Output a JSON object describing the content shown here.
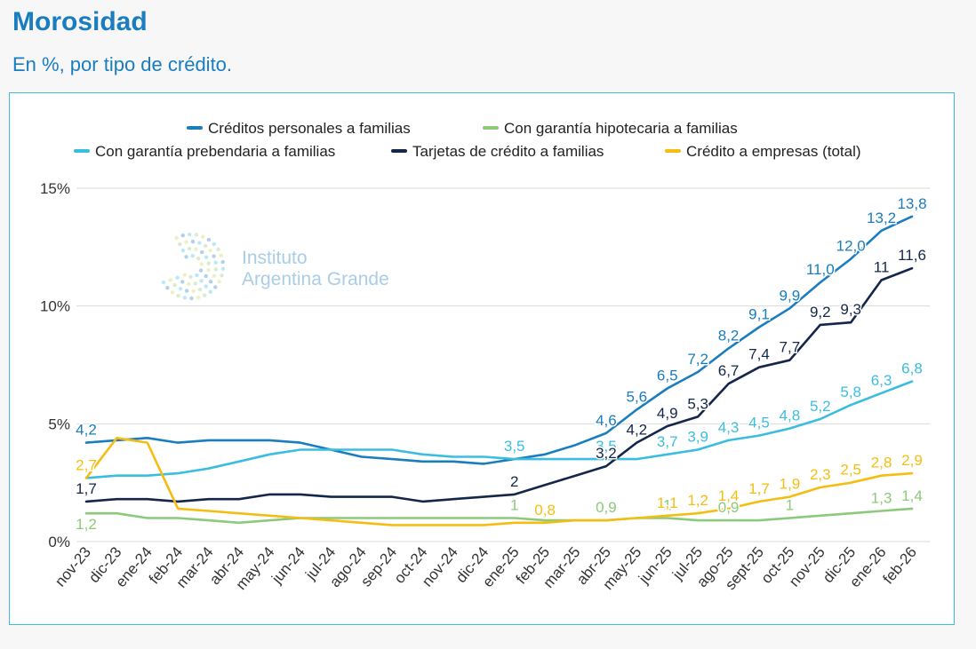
{
  "header": {
    "title": "Morosidad",
    "subtitle": "En %, por tipo de crédito."
  },
  "watermark": {
    "line1": "Instituto",
    "line2": "Argentina Grande"
  },
  "chart_data": {
    "type": "line",
    "categories": [
      "nov-23",
      "dic-23",
      "ene-24",
      "feb-24",
      "mar-24",
      "abr-24",
      "may-24",
      "jun-24",
      "jul-24",
      "ago-24",
      "sep-24",
      "oct-24",
      "nov-24",
      "dic-24",
      "ene-25",
      "feb-25",
      "mar-25",
      "abr-25",
      "may-25",
      "jun-25",
      "jul-25",
      "ago-25",
      "sept-25",
      "oct-25",
      "nov-25",
      "dic-25",
      "ene-26",
      "feb-26"
    ],
    "ylim": [
      0,
      15
    ],
    "yticks": [
      0,
      5,
      10,
      15
    ],
    "ytick_labels": [
      "0%",
      "5%",
      "10%",
      "15%"
    ],
    "grid": true,
    "legend_position": "top",
    "series": [
      {
        "name": "Créditos personales a familias",
        "color": "#1a7dbf",
        "values": [
          4.2,
          4.3,
          4.4,
          4.2,
          4.3,
          4.3,
          4.3,
          4.2,
          3.9,
          3.6,
          3.5,
          3.4,
          3.4,
          3.3,
          3.5,
          3.7,
          4.1,
          4.6,
          5.6,
          6.5,
          7.2,
          8.2,
          9.1,
          9.9,
          11.0,
          12.0,
          13.2,
          13.8
        ],
        "labels": [
          {
            "i": 0,
            "text": "4,2"
          },
          {
            "i": 14,
            "text": "3,5"
          },
          {
            "i": 17,
            "text": "4,6"
          },
          {
            "i": 18,
            "text": "5,6"
          },
          {
            "i": 19,
            "text": "6,5"
          },
          {
            "i": 20,
            "text": "7,2"
          },
          {
            "i": 21,
            "text": "8,2"
          },
          {
            "i": 22,
            "text": "9,1"
          },
          {
            "i": 23,
            "text": "9,9"
          },
          {
            "i": 24,
            "text": "11,0"
          },
          {
            "i": 25,
            "text": "12,0"
          },
          {
            "i": 26,
            "text": "13,2"
          },
          {
            "i": 27,
            "text": "13,8"
          }
        ]
      },
      {
        "name": "Con garantía hipotecaria a familias",
        "color": "#8cc97a",
        "values": [
          1.2,
          1.2,
          1.0,
          1.0,
          0.9,
          0.8,
          0.9,
          1.0,
          1.0,
          1.0,
          1.0,
          1.0,
          1.0,
          1.0,
          1.0,
          0.9,
          0.9,
          0.9,
          1.0,
          1.0,
          0.9,
          0.9,
          0.9,
          1.0,
          1.1,
          1.2,
          1.3,
          1.4
        ],
        "labels": [
          {
            "i": 0,
            "text": "1,2"
          },
          {
            "i": 14,
            "text": "1"
          },
          {
            "i": 17,
            "text": "0,9"
          },
          {
            "i": 19,
            "text": "1"
          },
          {
            "i": 21,
            "text": "0,9"
          },
          {
            "i": 23,
            "text": "1"
          },
          {
            "i": 26,
            "text": "1,3"
          },
          {
            "i": 27,
            "text": "1,4"
          }
        ]
      },
      {
        "name": "Con garantía prebendaria a familias",
        "color": "#3bbde0",
        "values": [
          2.7,
          2.8,
          2.8,
          2.9,
          3.1,
          3.4,
          3.7,
          3.9,
          3.9,
          3.9,
          3.9,
          3.7,
          3.6,
          3.6,
          3.5,
          3.5,
          3.5,
          3.5,
          3.5,
          3.7,
          3.9,
          4.3,
          4.5,
          4.8,
          5.2,
          5.8,
          6.3,
          6.8
        ],
        "labels": [
          {
            "i": 0,
            "text": "2,7"
          },
          {
            "i": 14,
            "text": "3,5"
          },
          {
            "i": 17,
            "text": "3,5"
          },
          {
            "i": 19,
            "text": "3,7"
          },
          {
            "i": 20,
            "text": "3,9"
          },
          {
            "i": 21,
            "text": "4,3"
          },
          {
            "i": 22,
            "text": "4,5"
          },
          {
            "i": 23,
            "text": "4,8"
          },
          {
            "i": 24,
            "text": "5,2"
          },
          {
            "i": 25,
            "text": "5,8"
          },
          {
            "i": 26,
            "text": "6,3"
          },
          {
            "i": 27,
            "text": "6,8"
          }
        ]
      },
      {
        "name": "Tarjetas de crédito a familias",
        "color": "#14264a",
        "values": [
          1.7,
          1.8,
          1.8,
          1.7,
          1.8,
          1.8,
          2.0,
          2.0,
          1.9,
          1.9,
          1.9,
          1.7,
          1.8,
          1.9,
          2.0,
          2.4,
          2.8,
          3.2,
          4.2,
          4.9,
          5.3,
          6.7,
          7.4,
          7.7,
          9.2,
          9.3,
          11.1,
          11.6
        ],
        "labels": [
          {
            "i": 0,
            "text": "1,7"
          },
          {
            "i": 14,
            "text": "2"
          },
          {
            "i": 17,
            "text": "3,2"
          },
          {
            "i": 18,
            "text": "4,2"
          },
          {
            "i": 19,
            "text": "4,9"
          },
          {
            "i": 20,
            "text": "5,3"
          },
          {
            "i": 21,
            "text": "6,7"
          },
          {
            "i": 22,
            "text": "7,4"
          },
          {
            "i": 23,
            "text": "7,7"
          },
          {
            "i": 24,
            "text": "9,2"
          },
          {
            "i": 25,
            "text": "9,3"
          },
          {
            "i": 26,
            "text": "11"
          },
          {
            "i": 27,
            "text": "11,6"
          }
        ]
      },
      {
        "name": "Crédito a empresas (total)",
        "color": "#f5bd12",
        "values": [
          2.7,
          4.4,
          4.2,
          1.4,
          1.3,
          1.2,
          1.1,
          1.0,
          0.9,
          0.8,
          0.7,
          0.7,
          0.7,
          0.7,
          0.8,
          0.8,
          0.9,
          0.9,
          1.0,
          1.1,
          1.2,
          1.4,
          1.7,
          1.9,
          2.3,
          2.5,
          2.8,
          2.9
        ],
        "labels": [
          {
            "i": 0,
            "text": "2,7"
          },
          {
            "i": 15,
            "text": "0,8"
          },
          {
            "i": 19,
            "text": "1,1"
          },
          {
            "i": 20,
            "text": "1,2"
          },
          {
            "i": 21,
            "text": "1,4"
          },
          {
            "i": 22,
            "text": "1,7"
          },
          {
            "i": 23,
            "text": "1,9"
          },
          {
            "i": 24,
            "text": "2,3"
          },
          {
            "i": 25,
            "text": "2,5"
          },
          {
            "i": 26,
            "text": "2,8"
          },
          {
            "i": 27,
            "text": "2,9"
          }
        ]
      }
    ]
  }
}
